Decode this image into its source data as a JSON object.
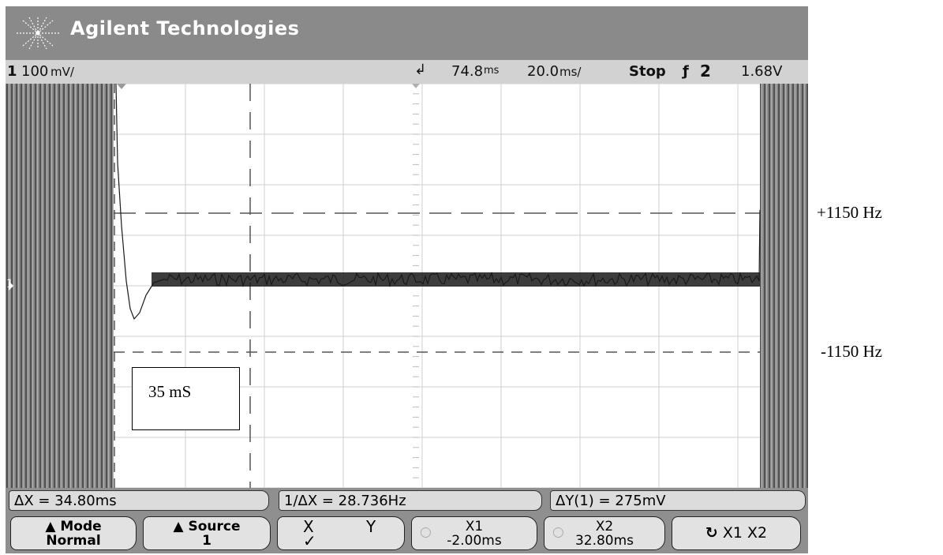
{
  "brand": {
    "name": "Agilent Technologies",
    "logo_icon": "starburst-icon"
  },
  "status": {
    "channel": "1",
    "channel_scale": "100",
    "channel_unit": "mV/",
    "trigger_marker_icon": "trigger-arrow-icon",
    "delay": "74.8",
    "delay_unit": "ms",
    "timebase": "20.0",
    "timebase_unit": "ms/",
    "run_state": "Stop",
    "trigger_slope_icon": "falling-edge-icon",
    "trigger_source": "2",
    "trigger_level": "1.68V"
  },
  "measurements": {
    "delta_x": "ΔX = 34.80ms",
    "inverse_delta_x": "1/ΔX = 28.736Hz",
    "delta_y": "ΔY(1) = 275mV"
  },
  "softkeys": {
    "mode_label": "Mode",
    "mode_value": "Normal",
    "source_label": "Source",
    "source_value": "1",
    "xy_x": "X",
    "xy_y": "Y",
    "xy_check": "✓",
    "x1_label": "X1",
    "x1_value": "-2.00ms",
    "x2_label": "X2",
    "x2_value": "32.80ms",
    "x1x2_label": "X1  X2",
    "x1x2_icon": "rotate-icon"
  },
  "annotations": {
    "upper_limit": "+1150 Hz",
    "lower_limit": "-1150 Hz",
    "time_box": "35 mS"
  },
  "colors": {
    "scope_frame": "#8a8a8a",
    "screen_bg": "#ffffff",
    "trace": "#1a1a1a",
    "grid": "#c8c8c8"
  }
}
